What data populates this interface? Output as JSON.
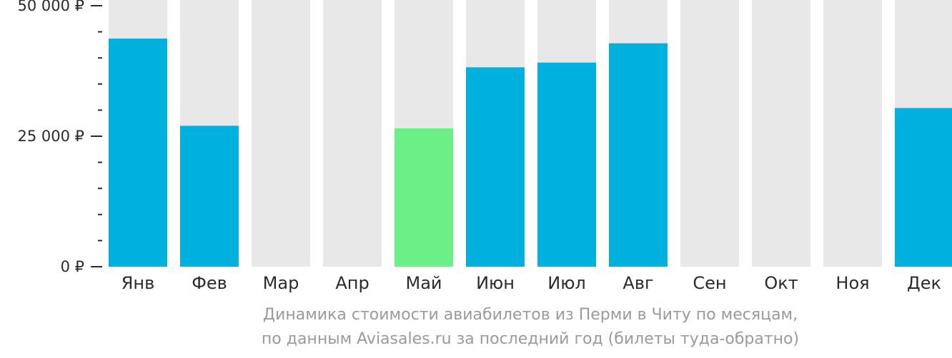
{
  "chart_data": {
    "type": "bar",
    "categories": [
      "Янв",
      "Фев",
      "Мар",
      "Апр",
      "Май",
      "Июн",
      "Июл",
      "Авг",
      "Сен",
      "Окт",
      "Ноя",
      "Дек"
    ],
    "values": [
      43700,
      27000,
      null,
      null,
      26500,
      38200,
      39100,
      42800,
      null,
      null,
      null,
      30400
    ],
    "highlight_index": 4,
    "ylim": [
      0,
      50000
    ],
    "yticks": [
      0,
      25000,
      50000
    ],
    "ytick_labels": [
      "0 ₽",
      "25 000 ₽",
      "50 000 ₽"
    ],
    "minor_ticks_per_interval": 5,
    "caption_line1": "Динамика стоимости авиабилетов из Перми в Читу по месяцам,",
    "caption_line2": "по данным Aviasales.ru за последний год (билеты туда-обратно)",
    "colors": {
      "bar": "#00b0dd",
      "highlight": "#6cef86",
      "background_bar": "#e8e8e8",
      "axis": "#2b2b2b",
      "text": "#2b2b2b",
      "caption": "#9a9a9a"
    }
  }
}
